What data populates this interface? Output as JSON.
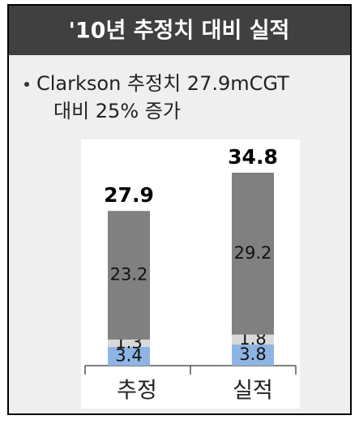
{
  "chart_data": {
    "type": "stacked-bar",
    "title": "'10년 추정치 대비 실적",
    "bullet_lines": [
      "Clarkson 추정치 27.9mCGT",
      "대비 25% 증가"
    ],
    "categories": [
      "추정",
      "실적"
    ],
    "series": [
      {
        "color": "#8eb4e3",
        "values": [
          3.4,
          3.8
        ]
      },
      {
        "color": "#d9d9d9",
        "values": [
          1.3,
          1.8
        ]
      },
      {
        "color": "#808080",
        "values": [
          23.2,
          29.2
        ]
      }
    ],
    "totals": [
      27.9,
      34.8
    ]
  }
}
